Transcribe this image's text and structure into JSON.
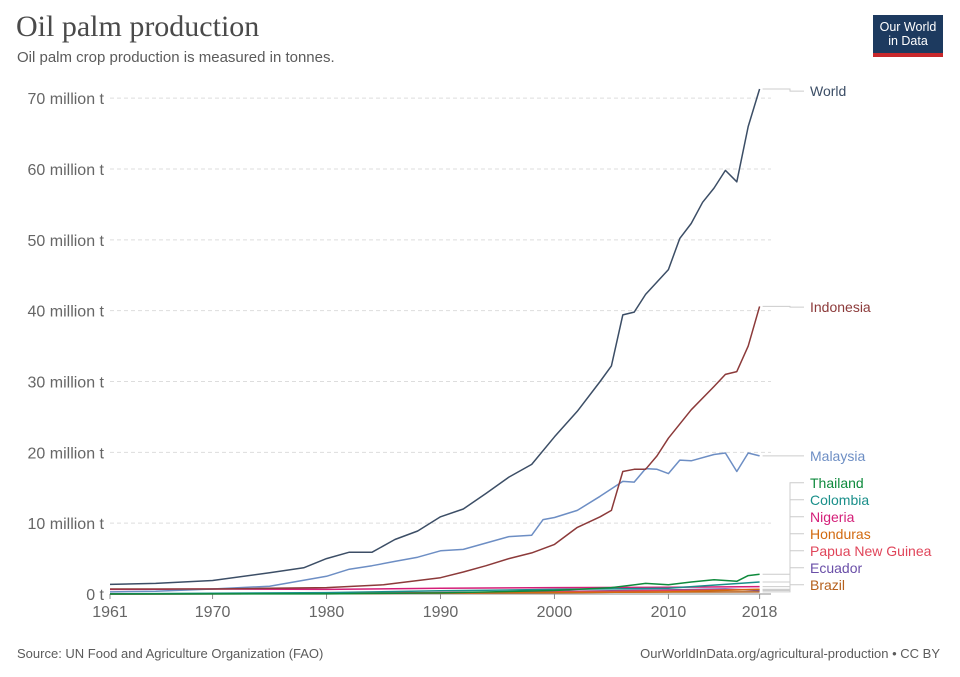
{
  "header": {
    "title": "Oil palm production",
    "subtitle": "Oil palm crop production is measured in tonnes.",
    "logo_line1": "Our World",
    "logo_line2": "in Data"
  },
  "footer": {
    "source": "Source: UN Food and Agriculture Organization (FAO)",
    "url": "OurWorldInData.org/agricultural-production • CC BY"
  },
  "chart_data": {
    "type": "line",
    "title": "Oil palm production",
    "ylabel": "",
    "xlabel": "",
    "ylim": [
      0,
      72000000
    ],
    "xlim": [
      1961,
      2019
    ],
    "grid": "horizontal dashed",
    "legend": "right, labels at line ends",
    "y_ticks": [
      {
        "value": 0,
        "label": "0 t"
      },
      {
        "value": 10000000,
        "label": "10 million t"
      },
      {
        "value": 20000000,
        "label": "20 million t"
      },
      {
        "value": 30000000,
        "label": "30 million t"
      },
      {
        "value": 40000000,
        "label": "40 million t"
      },
      {
        "value": 50000000,
        "label": "50 million t"
      },
      {
        "value": 60000000,
        "label": "60 million t"
      },
      {
        "value": 70000000,
        "label": "70 million t"
      }
    ],
    "x_ticks": [
      {
        "value": 1961,
        "label": "1961"
      },
      {
        "value": 1970,
        "label": "1970"
      },
      {
        "value": 1980,
        "label": "1980"
      },
      {
        "value": 1990,
        "label": "1990"
      },
      {
        "value": 2000,
        "label": "2000"
      },
      {
        "value": 2010,
        "label": "2010"
      },
      {
        "value": 2018,
        "label": "2018"
      }
    ],
    "series": [
      {
        "name": "World",
        "color": "#3c4e66",
        "label_value": 71000000,
        "points": [
          [
            1961,
            1350000
          ],
          [
            1965,
            1500000
          ],
          [
            1970,
            1900000
          ],
          [
            1975,
            3000000
          ],
          [
            1978,
            3700000
          ],
          [
            1980,
            5000000
          ],
          [
            1982,
            5900000
          ],
          [
            1984,
            5900000
          ],
          [
            1986,
            7700000
          ],
          [
            1988,
            8900000
          ],
          [
            1990,
            10900000
          ],
          [
            1992,
            12000000
          ],
          [
            1994,
            14200000
          ],
          [
            1996,
            16500000
          ],
          [
            1998,
            18300000
          ],
          [
            2000,
            22200000
          ],
          [
            2002,
            25800000
          ],
          [
            2004,
            30000000
          ],
          [
            2005,
            32200000
          ],
          [
            2006,
            39400000
          ],
          [
            2007,
            39800000
          ],
          [
            2008,
            42300000
          ],
          [
            2010,
            45800000
          ],
          [
            2011,
            50200000
          ],
          [
            2012,
            52300000
          ],
          [
            2013,
            55300000
          ],
          [
            2014,
            57300000
          ],
          [
            2015,
            59800000
          ],
          [
            2016,
            58200000
          ],
          [
            2017,
            66000000
          ],
          [
            2018,
            71300000
          ]
        ]
      },
      {
        "name": "Indonesia",
        "color": "#8c3a3a",
        "label_value": 40500000,
        "points": [
          [
            1961,
            700000
          ],
          [
            1970,
            700000
          ],
          [
            1975,
            800000
          ],
          [
            1980,
            900000
          ],
          [
            1985,
            1300000
          ],
          [
            1990,
            2300000
          ],
          [
            1992,
            3100000
          ],
          [
            1994,
            4000000
          ],
          [
            1996,
            5000000
          ],
          [
            1998,
            5800000
          ],
          [
            2000,
            7000000
          ],
          [
            2002,
            9400000
          ],
          [
            2004,
            10900000
          ],
          [
            2005,
            11800000
          ],
          [
            2006,
            17300000
          ],
          [
            2007,
            17600000
          ],
          [
            2008,
            17600000
          ],
          [
            2009,
            19500000
          ],
          [
            2010,
            22000000
          ],
          [
            2012,
            26000000
          ],
          [
            2014,
            29300000
          ],
          [
            2015,
            31000000
          ],
          [
            2016,
            31400000
          ],
          [
            2017,
            35000000
          ],
          [
            2018,
            40600000
          ]
        ]
      },
      {
        "name": "Malaysia",
        "color": "#6d8ec4",
        "label_value": 19500000,
        "points": [
          [
            1961,
            300000
          ],
          [
            1965,
            400000
          ],
          [
            1970,
            700000
          ],
          [
            1975,
            1100000
          ],
          [
            1980,
            2500000
          ],
          [
            1982,
            3500000
          ],
          [
            1984,
            4000000
          ],
          [
            1986,
            4600000
          ],
          [
            1988,
            5200000
          ],
          [
            1990,
            6100000
          ],
          [
            1992,
            6300000
          ],
          [
            1994,
            7200000
          ],
          [
            1996,
            8100000
          ],
          [
            1998,
            8300000
          ],
          [
            1999,
            10500000
          ],
          [
            2000,
            10800000
          ],
          [
            2002,
            11800000
          ],
          [
            2004,
            13800000
          ],
          [
            2006,
            15900000
          ],
          [
            2007,
            15800000
          ],
          [
            2008,
            17700000
          ],
          [
            2009,
            17600000
          ],
          [
            2010,
            17000000
          ],
          [
            2011,
            18900000
          ],
          [
            2012,
            18800000
          ],
          [
            2014,
            19700000
          ],
          [
            2015,
            19900000
          ],
          [
            2016,
            17300000
          ],
          [
            2017,
            19900000
          ],
          [
            2018,
            19500000
          ]
        ]
      },
      {
        "name": "Thailand",
        "color": "#0e8a3c",
        "label_value": 15700000,
        "points": [
          [
            1961,
            0
          ],
          [
            1980,
            20000
          ],
          [
            1990,
            150000
          ],
          [
            2000,
            500000
          ],
          [
            2005,
            900000
          ],
          [
            2008,
            1500000
          ],
          [
            2010,
            1300000
          ],
          [
            2012,
            1700000
          ],
          [
            2014,
            2000000
          ],
          [
            2016,
            1800000
          ],
          [
            2017,
            2600000
          ],
          [
            2018,
            2800000
          ]
        ]
      },
      {
        "name": "Colombia",
        "color": "#1a8f8a",
        "label_value": 13300000,
        "points": [
          [
            1961,
            20000
          ],
          [
            1980,
            200000
          ],
          [
            1990,
            450000
          ],
          [
            2000,
            650000
          ],
          [
            2010,
            800000
          ],
          [
            2018,
            1700000
          ]
        ]
      },
      {
        "name": "Nigeria",
        "color": "#d41e78",
        "label_value": 10900000,
        "points": [
          [
            1961,
            650000
          ],
          [
            1970,
            700000
          ],
          [
            1980,
            650000
          ],
          [
            1990,
            800000
          ],
          [
            2000,
            900000
          ],
          [
            2010,
            950000
          ],
          [
            2018,
            1050000
          ]
        ]
      },
      {
        "name": "Honduras",
        "color": "#d26a10",
        "label_value": 8500000,
        "points": [
          [
            1961,
            10000
          ],
          [
            1980,
            60000
          ],
          [
            1990,
            120000
          ],
          [
            2000,
            200000
          ],
          [
            2010,
            300000
          ],
          [
            2018,
            650000
          ]
        ]
      },
      {
        "name": "Papua New Guinea",
        "color": "#e0455a",
        "label_value": 6100000,
        "points": [
          [
            1961,
            0
          ],
          [
            1975,
            50000
          ],
          [
            1985,
            150000
          ],
          [
            1995,
            250000
          ],
          [
            2005,
            400000
          ],
          [
            2018,
            650000
          ]
        ]
      },
      {
        "name": "Ecuador",
        "color": "#6a4fa8",
        "label_value": 3700000,
        "points": [
          [
            1961,
            5000
          ],
          [
            1975,
            40000
          ],
          [
            1985,
            120000
          ],
          [
            1995,
            250000
          ],
          [
            2005,
            450000
          ],
          [
            2015,
            700000
          ],
          [
            2018,
            500000
          ]
        ]
      },
      {
        "name": "Brazil",
        "color": "#b5601d",
        "label_value": 1300000,
        "points": [
          [
            1961,
            20000
          ],
          [
            1975,
            40000
          ],
          [
            1985,
            80000
          ],
          [
            1995,
            150000
          ],
          [
            2005,
            250000
          ],
          [
            2018,
            300000
          ]
        ]
      }
    ]
  }
}
